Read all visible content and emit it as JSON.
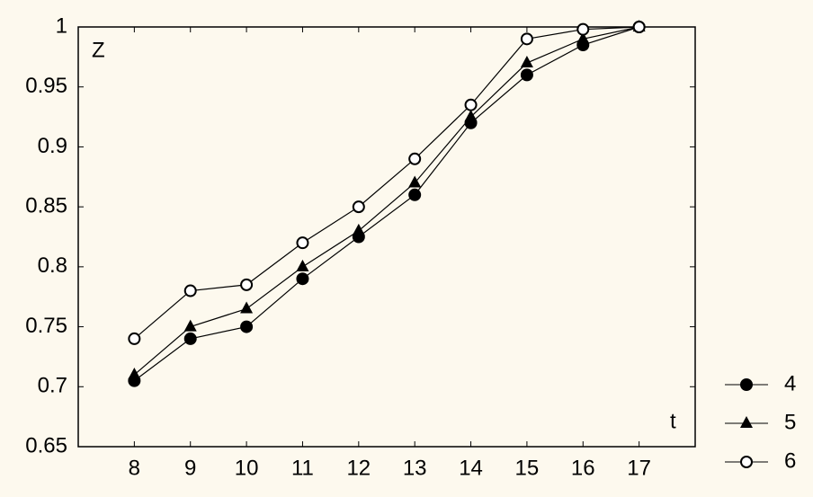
{
  "chart_data": {
    "type": "line",
    "x": [
      8,
      9,
      10,
      11,
      12,
      13,
      14,
      15,
      16,
      17
    ],
    "xlim": [
      7,
      18
    ],
    "xticks": [
      8,
      9,
      10,
      11,
      12,
      13,
      14,
      15,
      16,
      17
    ],
    "ylim": [
      0.65,
      1
    ],
    "yticks": [
      0.65,
      0.7,
      0.75,
      0.8,
      0.85,
      0.9,
      0.95,
      1
    ],
    "y_label": "Z",
    "x_label": "t",
    "legend": "bottom-right",
    "series": [
      {
        "name": "4",
        "color": "#000000",
        "marker": "filled-circle",
        "values": [
          0.705,
          0.74,
          0.75,
          0.79,
          0.825,
          0.86,
          0.92,
          0.96,
          0.985,
          1
        ]
      },
      {
        "name": "5",
        "color": "#000000",
        "marker": "triangle",
        "values": [
          0.71,
          0.75,
          0.765,
          0.8,
          0.83,
          0.87,
          0.925,
          0.97,
          0.99,
          1
        ]
      },
      {
        "name": "6",
        "color": "#000000",
        "marker": "open-circle",
        "values": [
          0.74,
          0.78,
          0.785,
          0.82,
          0.85,
          0.89,
          0.935,
          0.99,
          0.998,
          1
        ]
      }
    ]
  }
}
